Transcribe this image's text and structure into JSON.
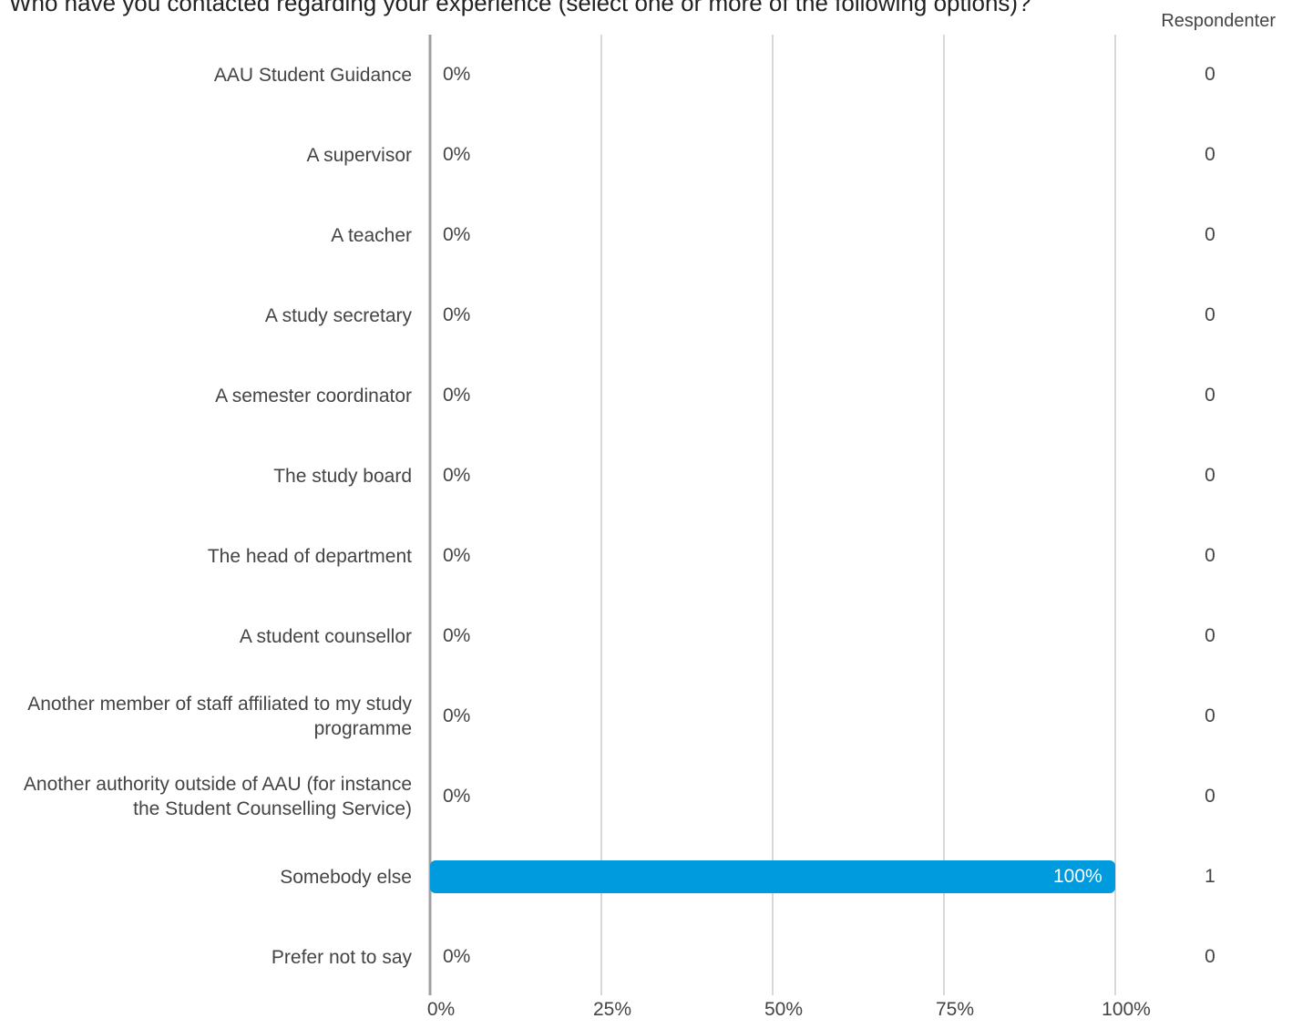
{
  "chart_data": {
    "type": "bar",
    "orientation": "horizontal",
    "title": "Who have you contacted regarding your experience (select one or more of the following options)?",
    "respondents_header": "Respondenter",
    "categories": [
      "AAU Student Guidance",
      "A supervisor",
      "A teacher",
      "A study secretary",
      "A semester coordinator",
      "The study board",
      "The head of department",
      "A student counsellor",
      "Another member of staff affiliated to my study programme",
      "Another authority outside of AAU (for instance the Student Counselling Service)",
      "Somebody else",
      "Prefer not to say"
    ],
    "values": [
      0,
      0,
      0,
      0,
      0,
      0,
      0,
      0,
      0,
      0,
      100,
      0
    ],
    "value_labels": [
      "0%",
      "0%",
      "0%",
      "0%",
      "0%",
      "0%",
      "0%",
      "0%",
      "0%",
      "0%",
      "100%",
      "0%"
    ],
    "respondents": [
      "0",
      "0",
      "0",
      "0",
      "0",
      "0",
      "0",
      "0",
      "0",
      "0",
      "1",
      "0"
    ],
    "x_ticks": [
      "0%",
      "25%",
      "50%",
      "75%",
      "100%"
    ],
    "xlim": [
      0,
      100
    ],
    "grid": true,
    "bar_color": "#009ADE",
    "gridline_color": "#b0b0b0",
    "axis_color": "#a0a0a0"
  }
}
